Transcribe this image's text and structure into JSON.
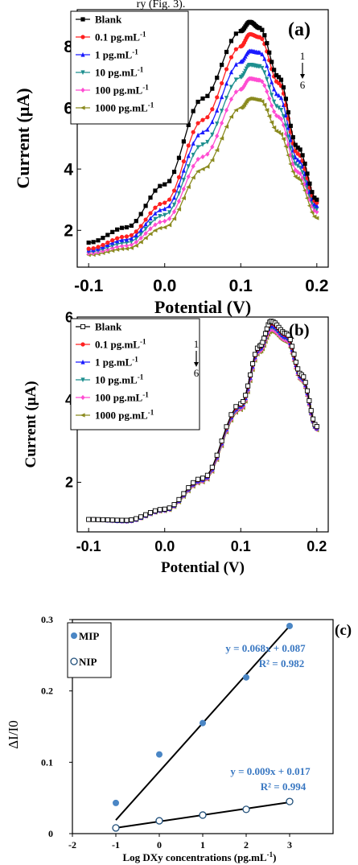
{
  "header_fragment": "ry (Fig. 3).",
  "chart_data": [
    {
      "panel": "(a)",
      "type": "line",
      "xlabel": "Potential (V)",
      "ylabel": "Current (μA)",
      "xlim": [
        -0.115,
        0.215
      ],
      "ylim": [
        0.8,
        9.2
      ],
      "xticks": [
        "-0.1",
        "0.0",
        "0.1",
        "0.2"
      ],
      "xtick_values": [
        -0.1,
        0.0,
        0.1,
        0.2
      ],
      "yticks": [
        "2",
        "4",
        "6",
        "8"
      ],
      "ytick_values": [
        2,
        4,
        6,
        8
      ],
      "legend_position": "top-left",
      "annotation_top": "1",
      "annotation_bottom": "6",
      "x": [
        -0.1,
        -0.05,
        0.0,
        0.05,
        0.1,
        0.112,
        0.125,
        0.15,
        0.175,
        0.2
      ],
      "series": [
        {
          "name": "Blank",
          "color": "#000000",
          "marker": "square",
          "values": [
            1.6,
            2.1,
            3.5,
            6.3,
            8.5,
            8.8,
            8.6,
            7.0,
            4.7,
            3.0
          ]
        },
        {
          "name": "0.1 pg.mL-1",
          "name_base": "0.1 pg.mL",
          "name_sup": "-1",
          "color": "#ff2020",
          "marker": "circle",
          "values": [
            1.4,
            1.8,
            2.9,
            5.6,
            8.0,
            8.4,
            8.3,
            6.8,
            4.5,
            2.9
          ]
        },
        {
          "name": "1 pg.mL-1",
          "name_base": "1 pg.mL",
          "name_sup": "-1",
          "color": "#1a1aff",
          "marker": "triangle",
          "values": [
            1.35,
            1.7,
            2.7,
            5.2,
            7.5,
            7.85,
            7.8,
            6.4,
            4.3,
            2.8
          ]
        },
        {
          "name": "10 pg.mL-1",
          "name_base": "10 pg.mL",
          "name_sup": "-1",
          "color": "#1e8f8f",
          "marker": "triangle-down",
          "values": [
            1.3,
            1.6,
            2.5,
            4.8,
            7.0,
            7.4,
            7.35,
            6.0,
            4.1,
            2.7
          ]
        },
        {
          "name": "100 pg.mL-1",
          "name_base": "100 pg.mL",
          "name_sup": "-1",
          "color": "#ff4dd2",
          "marker": "diamond",
          "values": [
            1.25,
            1.5,
            2.3,
            4.4,
            6.6,
            6.95,
            6.9,
            5.7,
            3.9,
            2.6
          ]
        },
        {
          "name": "1000 pg.mL-1",
          "name_base": "1000 pg.mL",
          "name_sup": "-1",
          "color": "#8a8a1e",
          "marker": "triangle-left",
          "values": [
            1.2,
            1.4,
            2.1,
            4.0,
            6.0,
            6.3,
            6.25,
            5.2,
            3.7,
            2.4
          ]
        }
      ]
    },
    {
      "panel": "(b)",
      "type": "line",
      "xlabel": "Potential (V)",
      "ylabel": "Current (μA)",
      "xlim": [
        -0.115,
        0.215
      ],
      "ylim": [
        0.8,
        6.0
      ],
      "xticks": [
        "-0.1",
        "0.0",
        "0.1",
        "0.2"
      ],
      "xtick_values": [
        -0.1,
        0.0,
        0.1,
        0.2
      ],
      "yticks": [
        "2",
        "4",
        "6"
      ],
      "ytick_values": [
        2,
        4,
        6
      ],
      "legend_position": "top-left",
      "annotation_top": "1",
      "annotation_bottom": "6",
      "x": [
        -0.1,
        -0.05,
        0.0,
        0.05,
        0.1,
        0.125,
        0.14,
        0.16,
        0.18,
        0.2
      ],
      "series": [
        {
          "name": "Blank",
          "color": "#000000",
          "marker": "square-open",
          "values": [
            1.1,
            1.08,
            1.35,
            2.1,
            3.9,
            5.3,
            5.9,
            5.6,
            4.6,
            3.35
          ]
        },
        {
          "name": "0.1 pg.mL-1",
          "name_base": "0.1 pg.mL",
          "name_sup": "-1",
          "color": "#ff2020",
          "marker": "circle",
          "values": [
            1.1,
            1.07,
            1.34,
            2.08,
            3.87,
            5.27,
            5.85,
            5.56,
            4.57,
            3.33
          ]
        },
        {
          "name": "1 pg.mL-1",
          "name_base": "1 pg.mL",
          "name_sup": "-1",
          "color": "#1a1aff",
          "marker": "triangle",
          "values": [
            1.1,
            1.06,
            1.33,
            2.06,
            3.84,
            5.24,
            5.8,
            5.52,
            4.54,
            3.31
          ]
        },
        {
          "name": "10 pg.mL-1",
          "name_base": "10 pg.mL",
          "name_sup": "-1",
          "color": "#1e8f8f",
          "marker": "triangle-down",
          "values": [
            1.1,
            1.06,
            1.32,
            2.04,
            3.81,
            5.21,
            5.75,
            5.48,
            4.51,
            3.3
          ]
        },
        {
          "name": "100 pg.mL-1",
          "name_base": "100 pg.mL",
          "name_sup": "-1",
          "color": "#ff4dd2",
          "marker": "diamond",
          "values": [
            1.1,
            1.05,
            1.31,
            2.02,
            3.78,
            5.18,
            5.7,
            5.44,
            4.48,
            3.28
          ]
        },
        {
          "name": "1000 pg.mL-1",
          "name_base": "1000 pg.mL",
          "name_sup": "-1",
          "color": "#8a8a1e",
          "marker": "triangle-left",
          "values": [
            1.1,
            1.05,
            1.3,
            2.0,
            3.75,
            5.15,
            5.65,
            5.4,
            4.45,
            3.26
          ]
        }
      ]
    },
    {
      "panel": "(c)",
      "type": "scatter",
      "xlabel": "Log DXy concentrations (pg.mL-1)",
      "xlabel_base": "Log DXy concentrations (pg.mL",
      "xlabel_sup": "-1",
      "xlabel_end": ")",
      "ylabel": "ΔI/I0",
      "xlim": [
        -2,
        4
      ],
      "ylim": [
        0,
        0.3
      ],
      "xticks": [
        "-2",
        "-1",
        "0",
        "1",
        "2",
        "3"
      ],
      "xtick_values": [
        -2,
        -1,
        0,
        1,
        2,
        3
      ],
      "yticks": [
        "0",
        "0.1",
        "0.2",
        "0.3"
      ],
      "ytick_values": [
        0,
        0.1,
        0.2,
        0.3
      ],
      "legend_position": "top-left",
      "series": [
        {
          "name": "MIP",
          "color": "#4a86c5",
          "marker": "filled-circle",
          "x": [
            -1,
            0,
            1,
            2,
            3
          ],
          "values": [
            0.043,
            0.111,
            0.155,
            0.219,
            0.291
          ],
          "fit": {
            "slope": 0.068,
            "intercept": 0.087,
            "equation": "y = 0.068x + 0.087",
            "r2": "R² = 0.982"
          }
        },
        {
          "name": "NIP",
          "color": "#1f4e79",
          "marker": "open-circle",
          "x": [
            -1,
            0,
            1,
            2,
            3
          ],
          "values": [
            0.008,
            0.018,
            0.026,
            0.034,
            0.045
          ],
          "fit": {
            "slope": 0.009,
            "intercept": 0.017,
            "equation": "y = 0.009x + 0.017",
            "r2": "R² = 0.994"
          }
        }
      ]
    }
  ]
}
